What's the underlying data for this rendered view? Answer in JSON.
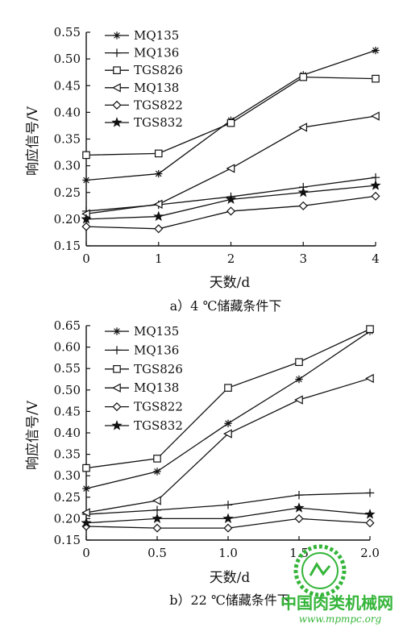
{
  "chart_data": [
    {
      "type": "line",
      "caption": "a）4 ℃储藏条件下",
      "xlabel": "天数/d",
      "ylabel": "响应信号/V",
      "x": [
        0,
        1,
        2,
        3,
        4
      ],
      "xticks": [
        "0",
        "1",
        "2",
        "3",
        "4"
      ],
      "ylim": [
        0.15,
        0.55
      ],
      "yticks": [
        "0.15",
        "0.20",
        "0.25",
        "0.30",
        "0.35",
        "0.40",
        "0.45",
        "0.50",
        "0.55"
      ],
      "ytick_values": [
        0.15,
        0.2,
        0.25,
        0.3,
        0.35,
        0.4,
        0.45,
        0.5,
        0.55
      ],
      "legend_position": "top-left",
      "series": [
        {
          "name": "MQ135",
          "marker": "asterisk",
          "values": [
            0.273,
            0.285,
            0.385,
            0.47,
            0.516
          ]
        },
        {
          "name": "MQ136",
          "marker": "plus",
          "values": [
            0.215,
            0.227,
            0.242,
            0.26,
            0.278
          ]
        },
        {
          "name": "TGS826",
          "marker": "square",
          "values": [
            0.32,
            0.323,
            0.38,
            0.466,
            0.463
          ]
        },
        {
          "name": "MQ138",
          "marker": "triangle-left",
          "values": [
            0.21,
            0.228,
            0.295,
            0.372,
            0.393
          ]
        },
        {
          "name": "TGS822",
          "marker": "diamond",
          "values": [
            0.186,
            0.182,
            0.215,
            0.225,
            0.243
          ]
        },
        {
          "name": "TGS832",
          "marker": "star",
          "values": [
            0.2,
            0.205,
            0.237,
            0.25,
            0.263
          ]
        }
      ]
    },
    {
      "type": "line",
      "caption": "b）22 ℃储藏条件下",
      "xlabel": "天数/d",
      "ylabel": "响应信号/V",
      "x": [
        0,
        0.5,
        1.0,
        1.5,
        2.0
      ],
      "xticks": [
        "0",
        "0.5",
        "1.0",
        "1.5",
        "2.0"
      ],
      "ylim": [
        0.15,
        0.65
      ],
      "yticks": [
        "0.15",
        "0.20",
        "0.25",
        "0.30",
        "0.35",
        "0.40",
        "0.45",
        "0.50",
        "0.55",
        "0.60",
        "0.65"
      ],
      "ytick_values": [
        0.15,
        0.2,
        0.25,
        0.3,
        0.35,
        0.4,
        0.45,
        0.5,
        0.55,
        0.6,
        0.65
      ],
      "legend_position": "top-left",
      "series": [
        {
          "name": "MQ135",
          "marker": "asterisk",
          "values": [
            0.27,
            0.31,
            0.422,
            0.525,
            0.637
          ]
        },
        {
          "name": "MQ136",
          "marker": "plus",
          "values": [
            0.21,
            0.22,
            0.232,
            0.255,
            0.26
          ]
        },
        {
          "name": "TGS826",
          "marker": "square",
          "values": [
            0.318,
            0.34,
            0.505,
            0.565,
            0.642
          ]
        },
        {
          "name": "MQ138",
          "marker": "triangle-left",
          "values": [
            0.214,
            0.242,
            0.398,
            0.477,
            0.527
          ]
        },
        {
          "name": "TGS822",
          "marker": "diamond",
          "values": [
            0.182,
            0.178,
            0.178,
            0.2,
            0.19
          ]
        },
        {
          "name": "TGS832",
          "marker": "star",
          "values": [
            0.19,
            0.2,
            0.2,
            0.225,
            0.21
          ]
        }
      ]
    }
  ],
  "watermark": {
    "site_name": "中国肉类机械网",
    "url": "www.mpmpc.org",
    "logo_color": "#35b53a"
  }
}
